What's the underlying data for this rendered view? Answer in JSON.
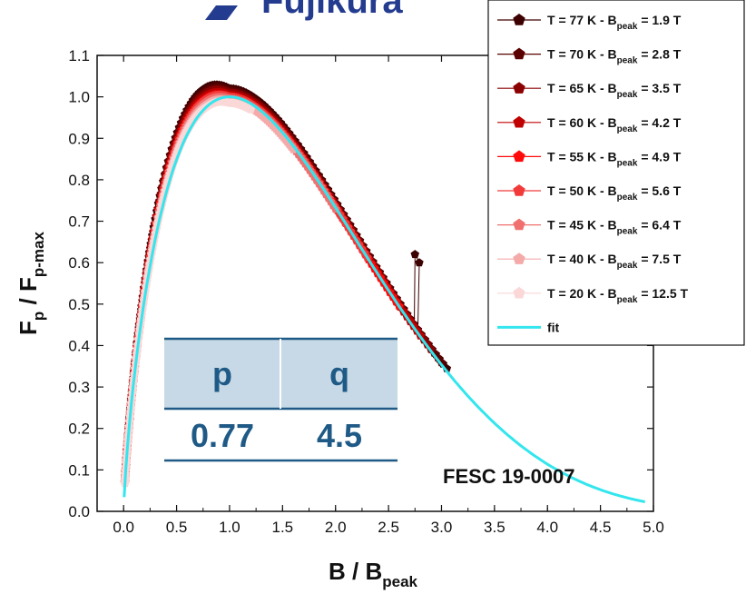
{
  "logo_text": "Fujikura",
  "chart_data": {
    "type": "scatter",
    "xlabel": "B / B",
    "xlabel_sub": "peak",
    "ylabel_main": "F",
    "ylabel_sub1": "p",
    "ylabel_mid": " / F",
    "ylabel_sub2": "p-max",
    "xlim": [
      -0.25,
      5.0
    ],
    "ylim": [
      0.0,
      1.1
    ],
    "xticks": [
      "0.0",
      "0.5",
      "1.0",
      "1.5",
      "2.0",
      "2.5",
      "3.0",
      "3.5",
      "4.0",
      "4.5",
      "5.0"
    ],
    "yticks": [
      "0.0",
      "0.1",
      "0.2",
      "0.3",
      "0.4",
      "0.5",
      "0.6",
      "0.7",
      "0.8",
      "0.9",
      "1.0",
      "1.1"
    ],
    "grid": false,
    "legend_position": "top-right",
    "series": [
      {
        "prefix": "T = 77 K - B",
        "sub": "peak",
        "suffix": " = 1.9 T",
        "color": "#3d0000",
        "xmax": 3.05,
        "width": 0.044,
        "scale": 1.02,
        "outlier": [
          [
            2.75,
            0.62
          ],
          [
            2.79,
            0.6
          ]
        ]
      },
      {
        "prefix": "T = 70 K - B",
        "sub": "peak",
        "suffix": " = 2.8 T",
        "color": "#5a0000",
        "xmax": 3.0,
        "width": 0.041,
        "scale": 1.015
      },
      {
        "prefix": "T = 65 K - B",
        "sub": "peak",
        "suffix": " = 3.5 T",
        "color": "#8b0000",
        "xmax": 2.9,
        "width": 0.039,
        "scale": 1.01
      },
      {
        "prefix": "T = 60 K - B",
        "sub": "peak",
        "suffix": " = 4.2 T",
        "color": "#c00000",
        "xmax": 2.8,
        "width": 0.036,
        "scale": 1.005
      },
      {
        "prefix": "T = 55 K - B",
        "sub": "peak",
        "suffix": " = 4.9 T",
        "color": "#ff0a0a",
        "xmax": 2.6,
        "width": 0.034,
        "scale": 1.0
      },
      {
        "prefix": "T = 50 K - B",
        "sub": "peak",
        "suffix": " = 5.6 T",
        "color": "#f23a3a",
        "xmax": 2.3,
        "width": 0.031,
        "scale": 1.0
      },
      {
        "prefix": "T = 45 K - B",
        "sub": "peak",
        "suffix": " = 6.4 T",
        "color": "#f07070",
        "xmax": 2.0,
        "width": 0.029,
        "scale": 0.995
      },
      {
        "prefix": "T = 40 K - B",
        "sub": "peak",
        "suffix": " = 7.5 T",
        "color": "#f5aaaa",
        "xmax": 1.6,
        "width": 0.026,
        "scale": 0.99
      },
      {
        "prefix": "T = 20 K - B",
        "sub": "peak",
        "suffix": " = 12.5 T",
        "color": "#fbd8d8",
        "xmax": 1.2,
        "width": 0.024,
        "scale": 0.985
      }
    ],
    "fit": {
      "name": "fit",
      "color": "#33e6ee",
      "p": 0.77,
      "q": 4.5,
      "xmax": 4.92
    },
    "table": {
      "headers": [
        "p",
        "q"
      ],
      "values": [
        "0.77",
        "4.5"
      ]
    },
    "annotation": "FESC 19-0007"
  }
}
